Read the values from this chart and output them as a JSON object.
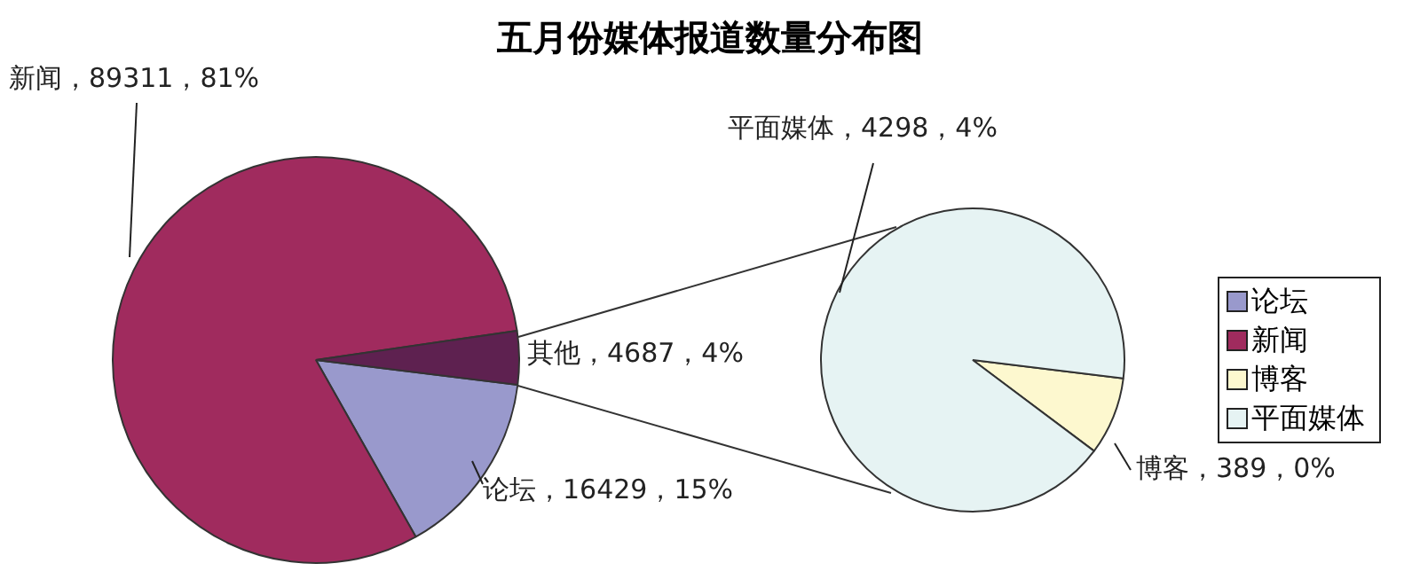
{
  "chart_data": [
    {
      "type": "pie",
      "title": "五月份媒体报道数量分布图",
      "categories": [
        "论坛",
        "新闻",
        "其他"
      ],
      "values": [
        16429,
        89311,
        4687
      ],
      "colors": [
        "#9999cc",
        "#a02b5e",
        "#5e2150"
      ],
      "value_labels": [
        "，16429，15%",
        "，89311，81%",
        "，4687，4%"
      ],
      "legend": "right"
    },
    {
      "type": "pie",
      "categories": [
        "博客",
        "平面媒体"
      ],
      "values": [
        389,
        4298
      ],
      "colors": [
        "#fdf8cf",
        "#e6f3f3"
      ],
      "value_labels": [
        "，389，0%",
        "，4298，4%"
      ],
      "legend": "right"
    }
  ]
}
